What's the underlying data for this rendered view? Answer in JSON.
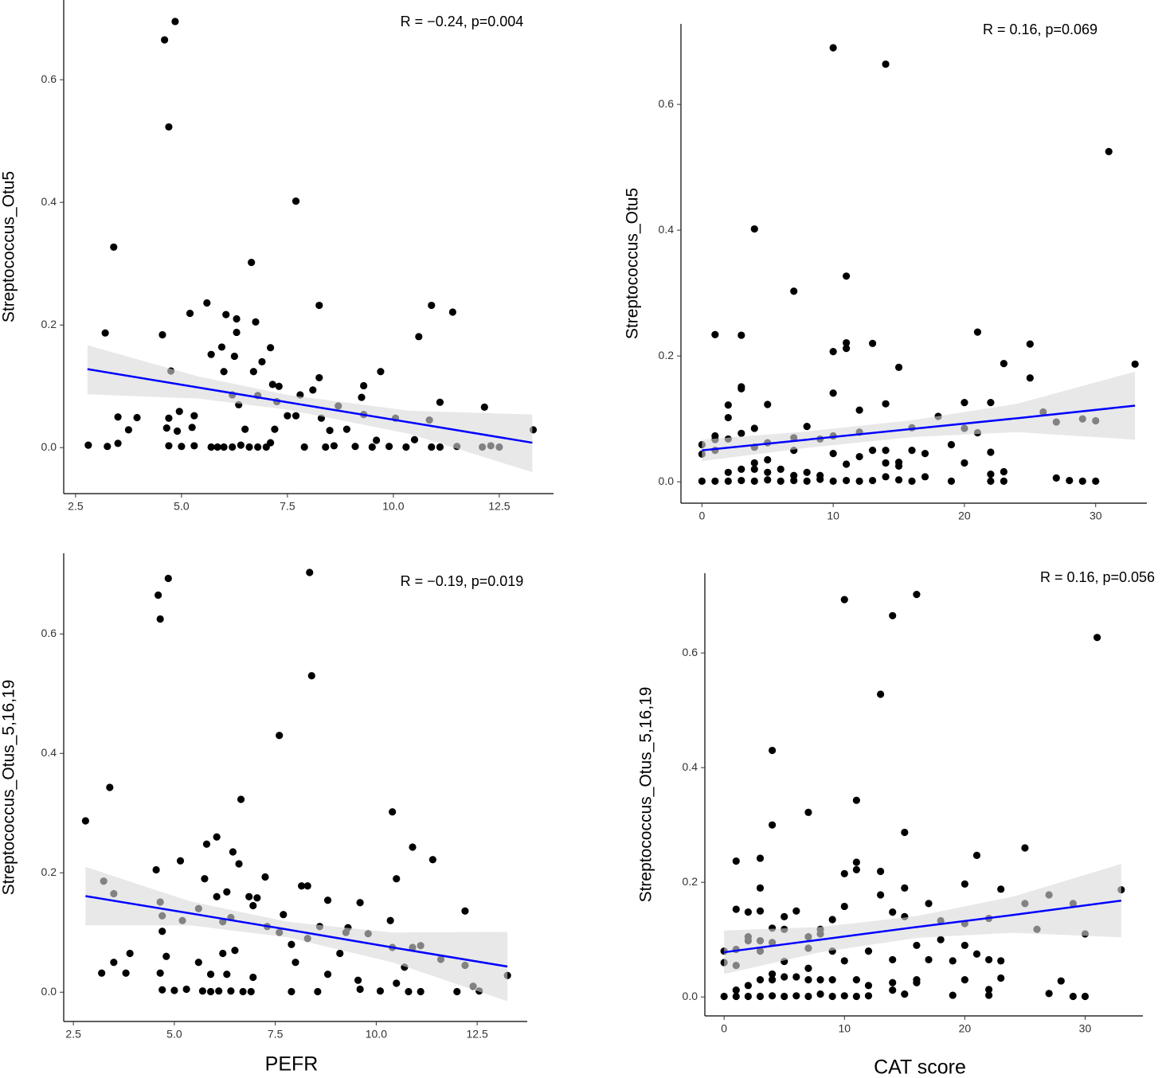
{
  "chart_data": [
    {
      "type": "scatter",
      "annotation": "R = −0.24, p=0.004",
      "y_label": "Streptococcus_Otu5",
      "xlim": [
        2.22,
        13.78
      ],
      "ylim": [
        -0.075,
        0.73
      ],
      "xticks": [
        2.5,
        {
          "value": 5,
          "label": "5.0"
        },
        7.5,
        {
          "value": 10,
          "label": "10.0"
        },
        12.5
      ],
      "yticks": [
        {
          "value": 0,
          "label": "0.0"
        },
        0.2,
        0.4,
        0.6
      ],
      "color": "#000000",
      "band_color": "#d9d9d9",
      "x": [
        4.6,
        4.85,
        4.7,
        7.7,
        3.4,
        6.65,
        5.6,
        8.25,
        10.9,
        11.4,
        5.2,
        6.05,
        6.3,
        6.75,
        3.2,
        4.55,
        6.3,
        10.6,
        7.1,
        5.95,
        5.7,
        6.25,
        6.9,
        9.7,
        4.75,
        6.7,
        7.3,
        8.25,
        9.3,
        6.0,
        7.15,
        8.1,
        6.2,
        6.8,
        7.8,
        9.25,
        11.1,
        7.25,
        6.35,
        8.7,
        12.15,
        7.5,
        7.7,
        8.3,
        9.3,
        10.05,
        4.95,
        3.5,
        3.95,
        4.7,
        5.3,
        3.75,
        4.65,
        4.9,
        5.25,
        6.5,
        7.2,
        8.5,
        8.9,
        9.6,
        10.5,
        10.85,
        13.3,
        2.8,
        3.25,
        3.5,
        4.7,
        5.0,
        5.3,
        5.7,
        5.85,
        6.0,
        6.2,
        6.4,
        6.6,
        6.8,
        7.0,
        7.1,
        7.9,
        8.4,
        8.6,
        9.1,
        9.5,
        9.9,
        10.3,
        10.9,
        11.1,
        11.5,
        12.1,
        12.3,
        12.5
      ],
      "values": [
        0.665,
        0.695,
        0.523,
        0.402,
        0.327,
        0.302,
        0.236,
        0.232,
        0.232,
        0.221,
        0.219,
        0.217,
        0.21,
        0.205,
        0.187,
        0.184,
        0.188,
        0.181,
        0.163,
        0.164,
        0.152,
        0.149,
        0.14,
        0.124,
        0.125,
        0.124,
        0.1,
        0.114,
        0.101,
        0.124,
        0.103,
        0.094,
        0.086,
        0.085,
        0.086,
        0.082,
        0.074,
        0.075,
        0.07,
        0.068,
        0.066,
        0.052,
        0.052,
        0.048,
        0.054,
        0.048,
        0.059,
        0.05,
        0.049,
        0.048,
        0.052,
        0.029,
        0.032,
        0.027,
        0.033,
        0.03,
        0.03,
        0.028,
        0.03,
        0.012,
        0.013,
        0.045,
        0.029,
        0.004,
        0.002,
        0.007,
        0.003,
        0.002,
        0.003,
        0.001,
        0.001,
        0.001,
        0.001,
        0.004,
        0.001,
        0.001,
        0.001,
        0.008,
        0.001,
        0.001,
        0.003,
        0.002,
        0.001,
        0.002,
        0.001,
        0.001,
        0.001,
        0.002,
        0.001,
        0.003,
        0.001
      ],
      "fit": {
        "color": "#0000ff",
        "x": [
          2.78,
          5.4,
          7.5,
          10.4,
          13.28
        ],
        "values": [
          0.128,
          0.098,
          0.074,
          0.041,
          0.008
        ],
        "lower": [
          0.087,
          0.08,
          0.062,
          0.022,
          -0.04
        ],
        "upper": [
          0.167,
          0.116,
          0.086,
          0.06,
          0.054
        ]
      }
    },
    {
      "type": "scatter",
      "annotation": "R = 0.16, p=0.069",
      "y_label": "Streptococcus_Otu5",
      "xlim": [
        -1.6,
        33.9
      ],
      "ylim": [
        -0.034,
        0.728
      ],
      "xticks": [
        0,
        10,
        20,
        30
      ],
      "yticks": [
        {
          "value": 0,
          "label": "0.0"
        },
        0.2,
        0.4,
        0.6
      ],
      "color": "#000000",
      "band_color": "#d9d9d9",
      "x": [
        10,
        14,
        31,
        4,
        7,
        11,
        1,
        3,
        21,
        25,
        11,
        13,
        10,
        11,
        15,
        33,
        23,
        25,
        3,
        3,
        10,
        14,
        20,
        22,
        2,
        5,
        12,
        26,
        18,
        29,
        30,
        27,
        2,
        4,
        8,
        16,
        20,
        21,
        12,
        0,
        0,
        1,
        1,
        2,
        3,
        4,
        5,
        7,
        9,
        10,
        10,
        11,
        13,
        14,
        15,
        17,
        19,
        22,
        1,
        2,
        3,
        4,
        4,
        5,
        5,
        6,
        7,
        7,
        8,
        9,
        12,
        14,
        15,
        16,
        20,
        22,
        23,
        0,
        1,
        2,
        3,
        4,
        5,
        6,
        7,
        8,
        9,
        10,
        11,
        12,
        13,
        14,
        15,
        16,
        17,
        19,
        22,
        23,
        27,
        28,
        29,
        30
      ],
      "values": [
        0.69,
        0.664,
        0.525,
        0.402,
        0.303,
        0.327,
        0.234,
        0.233,
        0.238,
        0.219,
        0.221,
        0.22,
        0.207,
        0.212,
        0.182,
        0.187,
        0.188,
        0.165,
        0.151,
        0.148,
        0.141,
        0.124,
        0.126,
        0.126,
        0.122,
        0.123,
        0.114,
        0.111,
        0.104,
        0.1,
        0.097,
        0.095,
        0.102,
        0.085,
        0.088,
        0.086,
        0.085,
        0.078,
        0.079,
        0.059,
        0.044,
        0.073,
        0.067,
        0.068,
        0.077,
        0.055,
        0.062,
        0.07,
        0.068,
        0.073,
        0.045,
        0.028,
        0.05,
        0.05,
        0.031,
        0.045,
        0.059,
        0.047,
        0.05,
        0.015,
        0.02,
        0.03,
        0.02,
        0.035,
        0.015,
        0.02,
        0.05,
        0.01,
        0.015,
        0.01,
        0.04,
        0.03,
        0.025,
        0.05,
        0.03,
        0.012,
        0.016,
        0.001,
        0.001,
        0.001,
        0.002,
        0.001,
        0.003,
        0.001,
        0.002,
        0.001,
        0.004,
        0.001,
        0.002,
        0.001,
        0.002,
        0.008,
        0.003,
        0.001,
        0.008,
        0.001,
        0.001,
        0.001,
        0.006,
        0.002,
        0.001,
        0.001
      ],
      "fit": {
        "color": "#0000ff",
        "x": [
          0,
          8,
          16,
          24,
          33
        ],
        "values": [
          0.05,
          0.067,
          0.084,
          0.101,
          0.121
        ],
        "lower": [
          0.033,
          0.054,
          0.071,
          0.079,
          0.067
        ],
        "upper": [
          0.067,
          0.08,
          0.098,
          0.124,
          0.175
        ]
      }
    },
    {
      "type": "scatter",
      "annotation": "R = −0.19, p=0.019",
      "y_label": "Streptococcus_Otus_5,16,19",
      "x_label": "PEFR",
      "xlim": [
        2.26,
        13.74
      ],
      "ylim": [
        -0.049,
        0.735
      ],
      "xticks": [
        2.5,
        {
          "value": 5,
          "label": "5.0"
        },
        7.5,
        {
          "value": 10,
          "label": "10.0"
        },
        12.5
      ],
      "yticks": [
        {
          "value": 0,
          "label": "0.0"
        },
        0.2,
        0.4,
        0.6
      ],
      "color": "#000000",
      "band_color": "#d9d9d9",
      "x": [
        4.6,
        4.85,
        4.65,
        8.35,
        8.4,
        7.6,
        3.4,
        6.65,
        10.4,
        2.8,
        6.05,
        5.8,
        10.9,
        6.45,
        11.4,
        5.15,
        6.6,
        4.55,
        7.25,
        5.75,
        10.5,
        3.25,
        8.15,
        8.3,
        6.3,
        3.5,
        6.05,
        6.85,
        7.05,
        8.8,
        4.65,
        9.6,
        5.6,
        6.95,
        12.2,
        4.7,
        7.7,
        5.2,
        6.2,
        6.4,
        10.35,
        7.3,
        8.6,
        9.3,
        4.7,
        7.6,
        9.25,
        9.8,
        8.3,
        10.4,
        10.9,
        7.9,
        11.1,
        6.5,
        9.1,
        3.9,
        4.8,
        5.6,
        6.2,
        3.5,
        8.0,
        10.7,
        11.6,
        12.2,
        3.2,
        3.8,
        4.65,
        5.9,
        6.3,
        6.95,
        8.8,
        9.55,
        10.5,
        13.25,
        4.7,
        5.0,
        5.3,
        5.7,
        5.9,
        6.1,
        6.4,
        6.7,
        6.9,
        7.9,
        8.55,
        9.6,
        10.1,
        10.8,
        11.1,
        12.0,
        12.4,
        12.55
      ],
      "values": [
        0.665,
        0.693,
        0.625,
        0.703,
        0.53,
        0.43,
        0.343,
        0.323,
        0.302,
        0.287,
        0.26,
        0.248,
        0.243,
        0.235,
        0.222,
        0.22,
        0.215,
        0.205,
        0.193,
        0.19,
        0.19,
        0.186,
        0.178,
        0.178,
        0.168,
        0.165,
        0.16,
        0.16,
        0.158,
        0.154,
        0.151,
        0.15,
        0.14,
        0.145,
        0.136,
        0.128,
        0.13,
        0.12,
        0.118,
        0.125,
        0.12,
        0.11,
        0.11,
        0.108,
        0.102,
        0.1,
        0.1,
        0.098,
        0.09,
        0.075,
        0.075,
        0.08,
        0.078,
        0.07,
        0.065,
        0.065,
        0.06,
        0.05,
        0.065,
        0.05,
        0.05,
        0.042,
        0.055,
        0.045,
        0.032,
        0.032,
        0.032,
        0.03,
        0.03,
        0.025,
        0.03,
        0.02,
        0.015,
        0.028,
        0.004,
        0.003,
        0.005,
        0.002,
        0.001,
        0.002,
        0.002,
        0.001,
        0.001,
        0.001,
        0.001,
        0.005,
        0.002,
        0.001,
        0.001,
        0.001,
        0.01,
        0.002
      ],
      "fit": {
        "color": "#0000ff",
        "x": [
          2.8,
          5.4,
          7.8,
          10.4,
          13.25
        ],
        "values": [
          0.161,
          0.132,
          0.105,
          0.075,
          0.043
        ],
        "lower": [
          0.112,
          0.112,
          0.092,
          0.05,
          -0.015
        ],
        "upper": [
          0.21,
          0.152,
          0.118,
          0.1,
          0.101
        ]
      }
    },
    {
      "type": "scatter",
      "annotation": "R = 0.16, p=0.056",
      "y_label": "Streptococcus_Otus_5,16,19",
      "x_label": "CAT score",
      "xlim": [
        -1.6,
        34.8
      ],
      "ylim": [
        -0.033,
        0.739
      ],
      "xticks": [
        0,
        10,
        20,
        30
      ],
      "yticks": [
        {
          "value": 0,
          "label": "0.0"
        },
        0.2,
        0.4,
        0.6
      ],
      "color": "#000000",
      "band_color": "#d9d9d9",
      "x": [
        10,
        16,
        14,
        31,
        13,
        4,
        11,
        7,
        4,
        15,
        25,
        21,
        3,
        1,
        11,
        11,
        10,
        13,
        3,
        15,
        23,
        33,
        20,
        27,
        13,
        17,
        25,
        29,
        10,
        1,
        2,
        5,
        6,
        3,
        14,
        15,
        22,
        9,
        18,
        26,
        30,
        20,
        4,
        5,
        8,
        2,
        3,
        4,
        7,
        8,
        18,
        0,
        1,
        2,
        0,
        1,
        3,
        5,
        7,
        9,
        10,
        12,
        14,
        16,
        17,
        20,
        21,
        22,
        23,
        19,
        1,
        2,
        3,
        4,
        4,
        5,
        6,
        7,
        7,
        8,
        9,
        11,
        12,
        14,
        16,
        20,
        22,
        23,
        0,
        1,
        2,
        3,
        4,
        5,
        6,
        7,
        8,
        9,
        10,
        11,
        12,
        14,
        15,
        16,
        19,
        22,
        27,
        28,
        29,
        30
      ],
      "values": [
        0.693,
        0.702,
        0.665,
        0.627,
        0.528,
        0.43,
        0.343,
        0.322,
        0.3,
        0.287,
        0.26,
        0.247,
        0.242,
        0.237,
        0.235,
        0.222,
        0.215,
        0.219,
        0.19,
        0.19,
        0.188,
        0.187,
        0.197,
        0.178,
        0.178,
        0.163,
        0.163,
        0.163,
        0.158,
        0.153,
        0.148,
        0.14,
        0.15,
        0.15,
        0.148,
        0.14,
        0.137,
        0.135,
        0.133,
        0.118,
        0.11,
        0.128,
        0.12,
        0.118,
        0.118,
        0.105,
        0.098,
        0.095,
        0.105,
        0.11,
        0.1,
        0.08,
        0.083,
        0.098,
        0.06,
        0.055,
        0.08,
        0.062,
        0.085,
        0.08,
        0.063,
        0.08,
        0.065,
        0.09,
        0.065,
        0.09,
        0.075,
        0.065,
        0.063,
        0.063,
        0.012,
        0.02,
        0.03,
        0.04,
        0.03,
        0.035,
        0.035,
        0.05,
        0.03,
        0.03,
        0.03,
        0.03,
        0.02,
        0.025,
        0.03,
        0.03,
        0.013,
        0.033,
        0.001,
        0.001,
        0.001,
        0.001,
        0.002,
        0.001,
        0.002,
        0.001,
        0.005,
        0.001,
        0.002,
        0.001,
        0.002,
        0.012,
        0.005,
        0.025,
        0.003,
        0.003,
        0.006,
        0.028,
        0.001,
        0.001
      ],
      "fit": {
        "color": "#0000ff",
        "x": [
          0,
          8,
          16,
          24,
          33
        ],
        "values": [
          0.078,
          0.1,
          0.122,
          0.143,
          0.168
        ],
        "lower": [
          0.04,
          0.078,
          0.103,
          0.112,
          0.104
        ],
        "upper": [
          0.116,
          0.122,
          0.141,
          0.175,
          0.232
        ]
      }
    }
  ]
}
